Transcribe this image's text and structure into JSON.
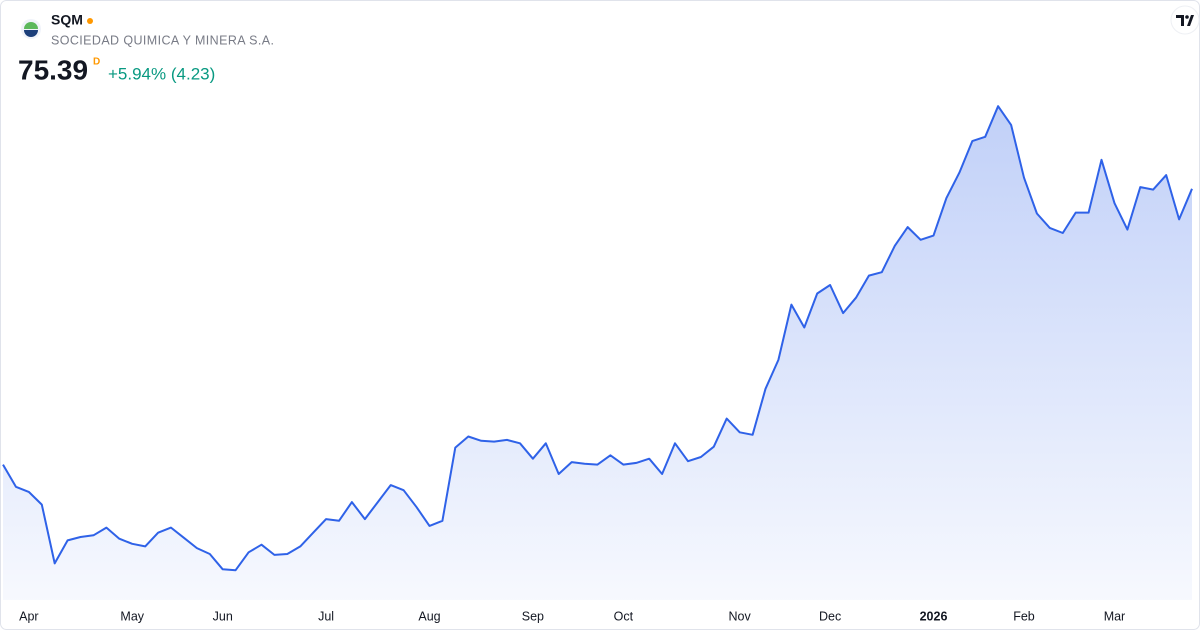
{
  "header": {
    "symbol": "SQM",
    "company": "SOCIEDAD QUIMICA Y MINERA S.A.",
    "price": "75.39",
    "price_flag": "D",
    "change": "+5.94% (4.23)"
  },
  "chart_data": {
    "type": "area",
    "color": "#2f62e8",
    "values": [
      43.0,
      40.4,
      39.8,
      38.3,
      31.4,
      34.1,
      34.5,
      34.7,
      35.6,
      34.3,
      33.7,
      33.4,
      35.0,
      35.6,
      34.4,
      33.2,
      32.5,
      30.7,
      30.6,
      32.7,
      33.6,
      32.4,
      32.5,
      33.4,
      35.0,
      36.6,
      36.4,
      38.6,
      36.6,
      38.6,
      40.6,
      40.0,
      38.0,
      35.8,
      36.4,
      45.0,
      46.3,
      45.8,
      45.7,
      45.9,
      45.5,
      43.7,
      45.5,
      41.9,
      43.3,
      43.1,
      43.0,
      44.1,
      43.0,
      43.2,
      43.7,
      41.9,
      45.5,
      43.4,
      43.9,
      45.1,
      48.4,
      46.8,
      46.5,
      51.9,
      55.3,
      61.8,
      59.1,
      63.1,
      64.1,
      60.8,
      62.6,
      65.2,
      65.6,
      68.7,
      70.9,
      69.4,
      69.9,
      74.3,
      77.3,
      81.0,
      81.5,
      85.1,
      82.9,
      76.7,
      72.5,
      70.8,
      70.2,
      72.6,
      72.6,
      78.8,
      73.7,
      70.6,
      75.6,
      75.3,
      77.0,
      71.8,
      75.39
    ],
    "xlim": [
      0,
      92
    ],
    "ylim": [
      27.1,
      87.0
    ],
    "xticks": [
      {
        "value": 2,
        "label": "Apr"
      },
      {
        "value": 10,
        "label": "May"
      },
      {
        "value": 17,
        "label": "Jun"
      },
      {
        "value": 25,
        "label": "Jul"
      },
      {
        "value": 33,
        "label": "Aug"
      },
      {
        "value": 41,
        "label": "Sep"
      },
      {
        "value": 48,
        "label": "Oct"
      },
      {
        "value": 57,
        "label": "Nov"
      },
      {
        "value": 64,
        "label": "Dec"
      },
      {
        "value": 72,
        "label": "2026"
      },
      {
        "value": 79,
        "label": "Feb"
      },
      {
        "value": 86,
        "label": "Mar"
      }
    ]
  }
}
